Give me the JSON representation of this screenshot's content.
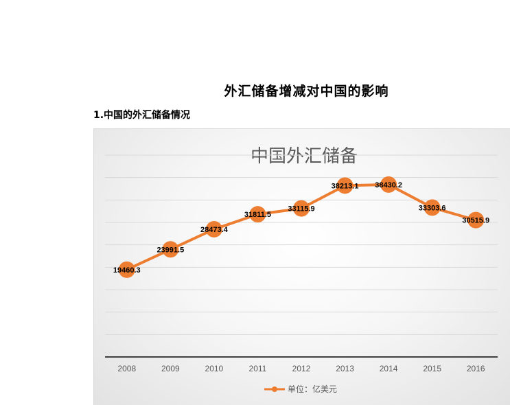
{
  "document": {
    "title": "外汇储备增减对中国的影响",
    "section_heading": "1.中国的外汇储备情况"
  },
  "colors": {
    "series": "#ED7D31",
    "gridline": "#d9d9d9",
    "axis": "#404040"
  },
  "chart_data": {
    "type": "line",
    "title": "中国外汇储备",
    "xlabel": "",
    "ylabel": "",
    "categories": [
      "2008",
      "2009",
      "2010",
      "2011",
      "2012",
      "2013",
      "2014",
      "2015",
      "2016"
    ],
    "series": [
      {
        "name": "单位：亿美元",
        "values": [
          19460.3,
          23991.5,
          28473.4,
          31811.5,
          33115.9,
          38213.1,
          38430.2,
          33303.6,
          30515.9
        ],
        "marker": "circle"
      }
    ],
    "ylim": [
      0,
      45000
    ],
    "y_tick_step": 5000,
    "y_tick_labels_shown": false,
    "grid": true,
    "data_labels": true,
    "legend_position": "bottom"
  }
}
